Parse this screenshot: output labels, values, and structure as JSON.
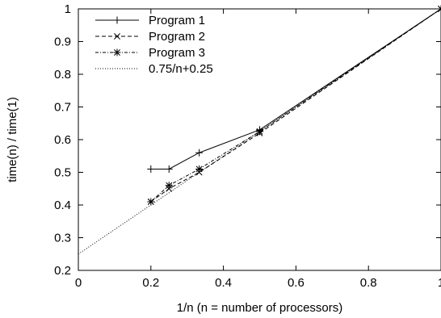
{
  "chart_data": {
    "type": "line",
    "xlabel": "1/n (n = number of processors)",
    "ylabel": "time(n) / time(1)",
    "xlim": [
      0,
      1
    ],
    "ylim": [
      0.2,
      1
    ],
    "x_ticks": [
      0,
      0.2,
      0.4,
      0.6,
      0.8,
      1
    ],
    "x_tick_labels": [
      "0",
      "0.2",
      "0.4",
      "0.6",
      "0.8",
      "1"
    ],
    "y_ticks": [
      0.2,
      0.3,
      0.4,
      0.5,
      0.6,
      0.7,
      0.8,
      0.9,
      1
    ],
    "y_tick_labels": [
      "0.2",
      "0.3",
      "0.4",
      "0.5",
      "0.6",
      "0.7",
      "0.8",
      "0.9",
      "1"
    ],
    "grid": false,
    "legend_position": "top-left",
    "series": [
      {
        "name": "Program 1",
        "line_style": "solid",
        "marker": "plus",
        "x": [
          0.2,
          0.25,
          0.3333,
          0.5,
          1
        ],
        "y": [
          0.51,
          0.51,
          0.56,
          0.63,
          1
        ]
      },
      {
        "name": "Program 2",
        "line_style": "dashed",
        "marker": "cross",
        "x": [
          0.2,
          0.25,
          0.3333,
          0.5,
          1
        ],
        "y": [
          0.41,
          0.45,
          0.5,
          0.62,
          1
        ]
      },
      {
        "name": "Program 3",
        "line_style": "dash-dot",
        "marker": "star",
        "x": [
          0.2,
          0.25,
          0.3333,
          0.5,
          1
        ],
        "y": [
          0.41,
          0.46,
          0.51,
          0.625,
          1
        ]
      },
      {
        "name": "0.75/n+0.25",
        "line_style": "dotted",
        "marker": "none",
        "x": [
          0,
          1
        ],
        "y": [
          0.25,
          1
        ]
      }
    ]
  }
}
